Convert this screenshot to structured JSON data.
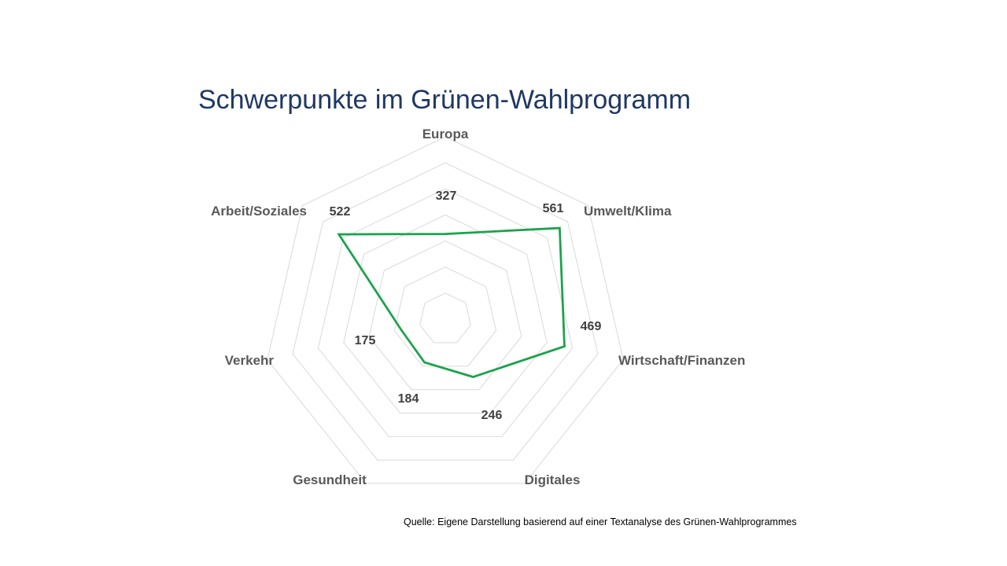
{
  "page": {
    "title": "Schwerpunkte im Grünen-Wahlprogramm",
    "source": "Quelle: Eigene Darstellung basierend auf einer Textanalyse des Grünen-Wahlprogrammes"
  },
  "chart_data": {
    "type": "radar",
    "title": "Schwerpunkte im Grünen-Wahlprogramm",
    "categories": [
      "Europa",
      "Umwelt/Klima",
      "Wirtschaft/Finanzen",
      "Digitales",
      "Gesundheit",
      "Verkehr",
      "Arbeit/Soziales"
    ],
    "series": [
      {
        "values": [
          327,
          561,
          469,
          246,
          184,
          175,
          522
        ],
        "color": "#1aa34a"
      }
    ],
    "rlim": [
      0,
      700
    ],
    "rings": [
      100,
      200,
      300,
      400,
      500,
      600,
      700
    ],
    "grid": true,
    "gridColor": "#d9d9d9",
    "legend": "none"
  }
}
